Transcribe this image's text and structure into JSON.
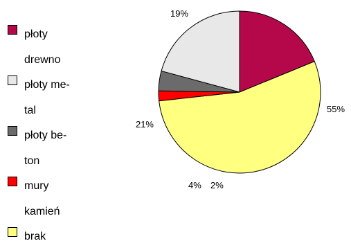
{
  "chart_data": {
    "type": "pie",
    "title": "",
    "slices": [
      {
        "label": "płoty drewno",
        "value": 19,
        "value_label": "19%",
        "color": "#b5084a"
      },
      {
        "label": "brak",
        "value": 55,
        "value_label": "55%",
        "color": "#ffff80"
      },
      {
        "label": "mury kamień",
        "value": 2,
        "value_label": "2%",
        "color": "#ff0000"
      },
      {
        "label": "płoty beton",
        "value": 4,
        "value_label": "4%",
        "color": "#6b6b6b"
      },
      {
        "label": "płoty metal",
        "value": 21,
        "value_label": "21%",
        "color": "#e8e8e8"
      }
    ],
    "legend": {
      "placement": "left",
      "entries": [
        {
          "label_lines": [
            "płoty",
            "drewno"
          ],
          "color": "#b5084a"
        },
        {
          "label_lines": [
            "płoty me-",
            "tal"
          ],
          "color": "#e8e8e8"
        },
        {
          "label_lines": [
            "płoty be-",
            "ton"
          ],
          "color": "#6b6b6b"
        },
        {
          "label_lines": [
            "mury",
            "kamień"
          ],
          "color": "#ff0000"
        },
        {
          "label_lines": [
            "brak"
          ],
          "color": "#ffff80"
        }
      ]
    }
  }
}
